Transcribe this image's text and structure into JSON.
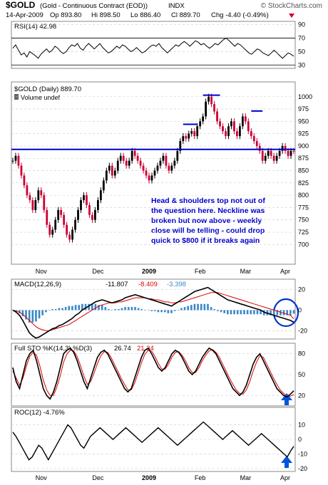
{
  "header": {
    "symbol": "$GOLD",
    "description": "(Gold - Continuous Contract (EOD))",
    "exchange": "INDX",
    "watermark": "© StockCharts.com",
    "date": "14-Apr-2009",
    "quote": {
      "op": "Op 893.80",
      "hi": "Hi 898.50",
      "lo": "Lo 886.40",
      "cl": "Cl 889.70",
      "chg": "Chg -4.40 (-0.49%)"
    }
  },
  "colors": {
    "price_up": "#000000",
    "price_down": "#cc0033",
    "neckline": "#0000cc",
    "annotation": "#0000cc",
    "signal": "#dd0000",
    "hist": "#3a86c8",
    "arrow": "#0055dd"
  },
  "annotation": "Head & shoulders top not out of the question here. Neckline was broken but now above - weekly close will be telling - could drop quick to $800 if it breaks again",
  "chart_data": [
    {
      "type": "line",
      "panel": "RSI",
      "title": "RSI(14) 42.98",
      "ylim": [
        25,
        95
      ],
      "yticks": [
        "90",
        "70",
        "50",
        "30"
      ],
      "reference_lines": [
        70,
        30
      ],
      "values": [
        55,
        60,
        52,
        45,
        48,
        42,
        50,
        47,
        44,
        40,
        46,
        50,
        54,
        49,
        52,
        58,
        55,
        50,
        47,
        50,
        56,
        60,
        58,
        62,
        55,
        52,
        58,
        62,
        58,
        54,
        58,
        62,
        56,
        52,
        48,
        50,
        54,
        58,
        55,
        60,
        58,
        54,
        50,
        52,
        56,
        52,
        48,
        50,
        54,
        58,
        60,
        58,
        62,
        56,
        52,
        48,
        52,
        56,
        60,
        58,
        62,
        65,
        62,
        58,
        62,
        66,
        64,
        60,
        62,
        58,
        55,
        58,
        62,
        60,
        64,
        68,
        70,
        66,
        62,
        58,
        62,
        60,
        56,
        52,
        48,
        46,
        50,
        54,
        52,
        48,
        46,
        44,
        48,
        52,
        48,
        44,
        40,
        44,
        48,
        46,
        42.98
      ]
    },
    {
      "type": "candlestick",
      "panel": "Price",
      "title": "$GOLD (Daily) 889.70",
      "legend_entry": "Volume undef",
      "ylim": [
        660,
        1030
      ],
      "yticks": [
        "1000",
        "975",
        "950",
        "925",
        "900",
        "875",
        "850",
        "825",
        "800",
        "775",
        "750",
        "725",
        "700"
      ],
      "x_labels": [
        "Nov",
        "Dec",
        "2009",
        "Feb",
        "Mar",
        "Apr"
      ],
      "neckline": 893,
      "shoulder_marks": [
        {
          "from_index": 60,
          "to_index": 65,
          "value": 944
        },
        {
          "from_index": 67,
          "to_index": 73,
          "value": 1003
        },
        {
          "from_index": 84,
          "to_index": 88,
          "value": 971
        }
      ],
      "close": [
        870,
        880,
        860,
        840,
        820,
        800,
        790,
        770,
        790,
        810,
        800,
        770,
        740,
        720,
        730,
        750,
        770,
        760,
        740,
        720,
        710,
        730,
        750,
        770,
        790,
        800,
        780,
        760,
        750,
        770,
        790,
        810,
        830,
        850,
        860,
        840,
        850,
        870,
        880,
        870,
        860,
        870,
        890,
        880,
        870,
        860,
        850,
        840,
        830,
        840,
        850,
        860,
        870,
        880,
        860,
        850,
        860,
        870,
        890,
        910,
        920,
        915,
        925,
        930,
        920,
        940,
        950,
        960,
        990,
        1000,
        985,
        970,
        950,
        940,
        930,
        920,
        940,
        950,
        930,
        920,
        940,
        960,
        950,
        930,
        920,
        910,
        900,
        890,
        870,
        880,
        890,
        880,
        870,
        880,
        890,
        900,
        890,
        880,
        890,
        889.7
      ]
    },
    {
      "type": "line",
      "panel": "MACD",
      "title": "MACD(12,26,9)",
      "series_labels": [
        "-11.807",
        "-8.409",
        "-3.398"
      ],
      "ylim": [
        -28,
        30
      ],
      "yticks": [
        "20",
        "0",
        "-20"
      ],
      "macd": [
        0,
        -2,
        -5,
        -10,
        -16,
        -22,
        -25,
        -27,
        -26,
        -24,
        -22,
        -20,
        -18,
        -17,
        -15,
        -14,
        -12,
        -10,
        -8,
        -5,
        -3,
        0,
        2,
        4,
        6,
        8,
        9,
        10,
        9,
        8,
        7,
        8,
        9,
        10,
        12,
        13,
        14,
        15,
        14,
        13,
        12,
        11,
        10,
        9,
        8,
        7,
        6,
        5,
        4,
        6,
        8,
        10,
        12,
        14,
        16,
        18,
        19,
        20,
        21,
        22,
        20,
        18,
        16,
        14,
        12,
        10,
        9,
        8,
        7,
        6,
        5,
        4,
        3,
        2,
        1,
        0,
        -2,
        -3,
        -4,
        -5,
        -6,
        -7,
        -8,
        -9,
        -10,
        -11.807
      ],
      "signal": [
        0,
        -1,
        -2,
        -4,
        -7,
        -10,
        -13,
        -16,
        -18,
        -19,
        -20,
        -20,
        -19,
        -18,
        -17,
        -16,
        -15,
        -14,
        -12,
        -10,
        -8,
        -6,
        -4,
        -2,
        0,
        2,
        4,
        5,
        6,
        7,
        7,
        7,
        8,
        8,
        9,
        10,
        11,
        12,
        12,
        12,
        12,
        11,
        11,
        10,
        10,
        9,
        8,
        8,
        7,
        7,
        8,
        8,
        9,
        10,
        11,
        12,
        13,
        14,
        15,
        16,
        17,
        17,
        17,
        16,
        15,
        14,
        13,
        12,
        11,
        10,
        9,
        8,
        7,
        6,
        5,
        4,
        3,
        2,
        1,
        0,
        -1,
        -2,
        -3,
        -4,
        -5,
        -8.409
      ]
    },
    {
      "type": "line",
      "panel": "Full STO",
      "title": "Full STO %K(14,3) %D(3)",
      "series_labels": [
        "26.74",
        "21.34"
      ],
      "ylim": [
        5,
        95
      ],
      "yticks": [
        "80",
        "50",
        "20"
      ],
      "k": [
        60,
        40,
        30,
        50,
        70,
        80,
        85,
        70,
        50,
        30,
        20,
        15,
        25,
        40,
        60,
        80,
        85,
        88,
        82,
        70,
        55,
        40,
        30,
        45,
        60,
        75,
        82,
        85,
        80,
        70,
        60,
        50,
        40,
        30,
        25,
        30,
        45,
        60,
        75,
        85,
        88,
        80,
        70,
        60,
        55,
        60,
        70,
        80,
        85,
        82,
        75,
        65,
        55,
        50,
        55,
        65,
        75,
        82,
        88,
        85,
        80,
        70,
        60,
        50,
        40,
        30,
        25,
        20,
        25,
        35,
        50,
        65,
        75,
        80,
        70,
        60,
        50,
        40,
        30,
        25,
        20,
        18,
        22,
        26.74
      ],
      "d": [
        55,
        45,
        35,
        45,
        62,
        76,
        82,
        78,
        62,
        42,
        28,
        20,
        20,
        32,
        48,
        68,
        80,
        85,
        84,
        76,
        63,
        48,
        36,
        40,
        52,
        66,
        77,
        83,
        82,
        75,
        65,
        55,
        45,
        36,
        28,
        28,
        38,
        52,
        67,
        79,
        85,
        84,
        76,
        66,
        58,
        58,
        65,
        75,
        82,
        83,
        78,
        70,
        60,
        53,
        53,
        60,
        70,
        78,
        84,
        86,
        82,
        75,
        65,
        55,
        45,
        36,
        28,
        23,
        22,
        28,
        40,
        55,
        68,
        77,
        75,
        65,
        55,
        45,
        36,
        28,
        23,
        19,
        19,
        21.34
      ]
    },
    {
      "type": "line",
      "panel": "ROC",
      "title": "ROC(12) -4.76%",
      "ylim": [
        -22,
        22
      ],
      "yticks": [
        "10",
        "0",
        "-10",
        "-20"
      ],
      "values": [
        5,
        2,
        -2,
        -6,
        -10,
        -14,
        -12,
        -8,
        -4,
        -6,
        -10,
        -14,
        -10,
        -6,
        -2,
        2,
        6,
        10,
        8,
        4,
        0,
        -4,
        -6,
        -2,
        2,
        4,
        6,
        8,
        6,
        4,
        2,
        0,
        2,
        4,
        6,
        8,
        6,
        4,
        2,
        0,
        -2,
        0,
        2,
        4,
        6,
        8,
        6,
        4,
        2,
        0,
        -2,
        -4,
        -2,
        0,
        2,
        4,
        6,
        8,
        10,
        12,
        10,
        8,
        6,
        4,
        2,
        0,
        2,
        4,
        6,
        4,
        2,
        0,
        -2,
        -4,
        -2,
        0,
        2,
        4,
        2,
        0,
        -2,
        -4,
        -6,
        -8,
        -10,
        -12,
        -8,
        -4.76
      ]
    }
  ]
}
